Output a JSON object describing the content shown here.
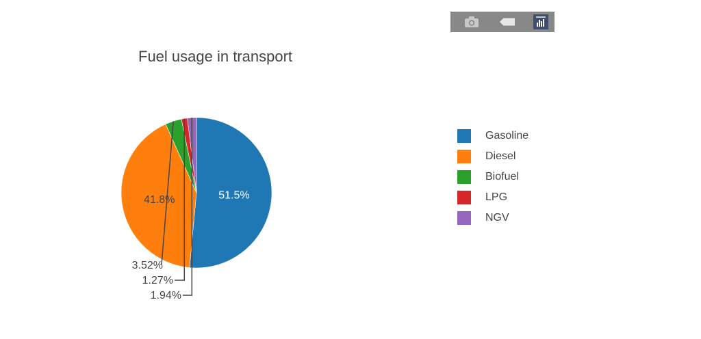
{
  "modebar": {
    "buttons": [
      {
        "icon": "camera-icon"
      },
      {
        "icon": "tag-icon"
      },
      {
        "icon": "bar-chart-icon"
      }
    ],
    "bg": "#888888"
  },
  "chart_data": {
    "type": "pie",
    "title": "Fuel usage in transport",
    "legend_position": "right",
    "slices": [
      {
        "label": "Gasoline",
        "value": 51.5,
        "text": "51.5%",
        "color": "#1f77b4",
        "text_color": "#ffffff"
      },
      {
        "label": "Diesel",
        "value": 41.8,
        "text": "41.8%",
        "color": "#ff7f0e",
        "text_color": "#444444"
      },
      {
        "label": "Biofuel",
        "value": 3.52,
        "text": "3.52%",
        "color": "#2ca02c",
        "text_color": "#444444"
      },
      {
        "label": "LPG",
        "value": 1.27,
        "text": "1.27%",
        "color": "#d62728",
        "text_color": "#444444"
      },
      {
        "label": "NGV",
        "value": 1.94,
        "text": "1.94%",
        "color": "#9467bd",
        "text_color": "#444444"
      }
    ]
  }
}
